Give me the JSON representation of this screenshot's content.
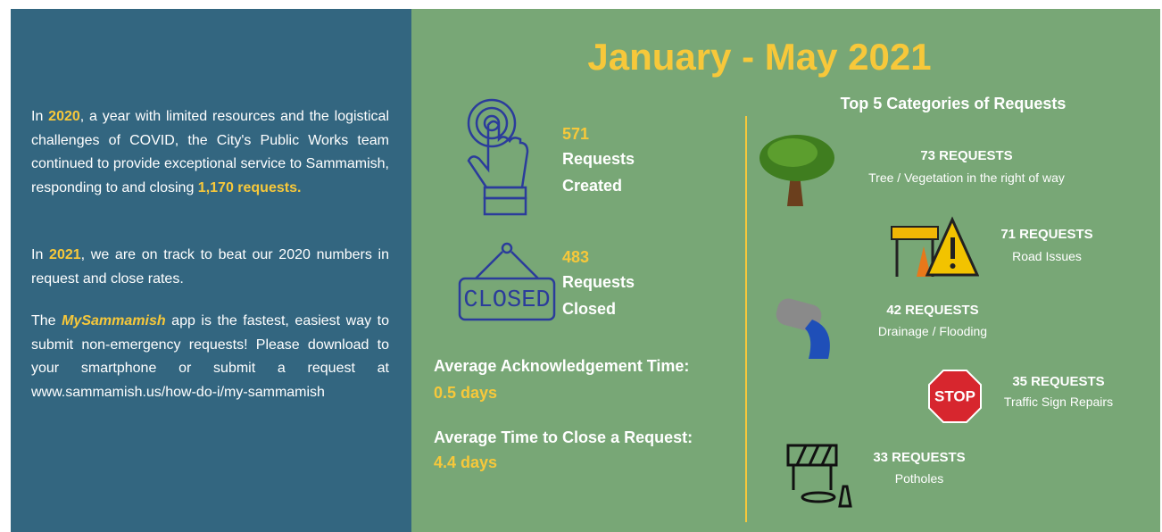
{
  "left": {
    "paragraphs": [
      [
        "In ",
        "2020",
        ", a year with limited resources and the logistical challenges of COVID, the City's Public Works team continued to provide exceptional service to Sammamish, responding to and closing ",
        "1,170 requests."
      ],
      [
        "In ",
        "2021",
        ", we are on track to beat our 2020 numbers in request and close rates."
      ],
      [
        "The ",
        "MySammamish",
        " app is the fastest, easiest way to submit non-emergency requests! Please download to your smartphone or submit a request at www.sammamish.us/how-do-i/my-sammamish"
      ]
    ]
  },
  "right": {
    "title": "January - May 2021",
    "created": {
      "number": "571",
      "line1": "Requests",
      "line2": "Created"
    },
    "closed": {
      "sign": "CLOSED",
      "number": "483",
      "line1": "Requests",
      "line2": "Closed"
    },
    "ack": {
      "label": "Average Acknowledgement Time:",
      "value": "0.5 days"
    },
    "close": {
      "label": "Average Time to Close a Request:",
      "value": "4.4 days"
    },
    "top": {
      "title": "Top 5 Categories of Requests",
      "items": [
        {
          "count": "73 REQUESTS",
          "label": "Tree / Vegetation in the right of way"
        },
        {
          "count": "71 REQUESTS",
          "label": "Road Issues"
        },
        {
          "count": "42 REQUESTS",
          "label": "Drainage / Flooding"
        },
        {
          "count": "35 REQUESTS",
          "label": "Traffic Sign Repairs",
          "icon_text": "STOP"
        },
        {
          "count": "33 REQUESTS",
          "label": "Potholes"
        }
      ]
    }
  }
}
